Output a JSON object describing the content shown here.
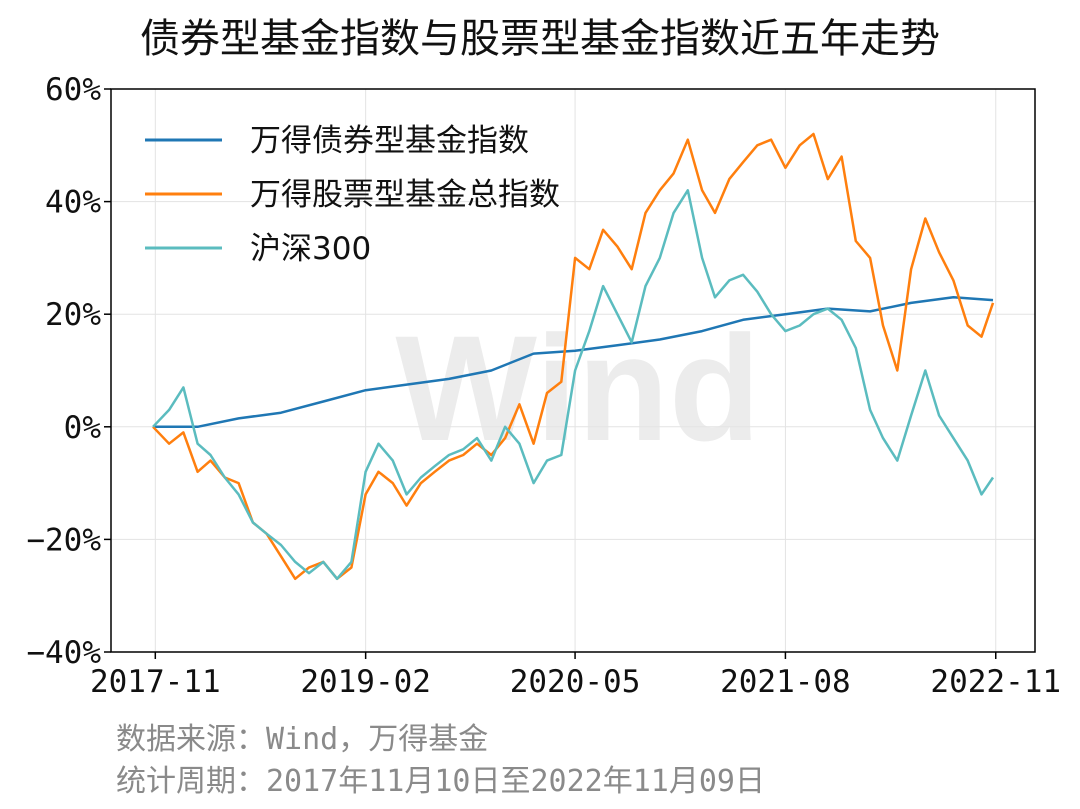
{
  "title": "债券型基金指数与股票型基金指数近五年走势",
  "source": "数据来源：Wind，万得基金",
  "period": "统计周期：2017年11月10日至2022年11月09日",
  "watermark": "Wind",
  "chart_data": {
    "type": "line",
    "title": "债券型基金指数与股票型基金指数近五年走势",
    "xlabel": "",
    "ylabel": "",
    "x_range": [
      "2017-11-10",
      "2022-11-09"
    ],
    "ylim": [
      -40,
      60
    ],
    "y_unit": "%",
    "y_ticks": [
      -40,
      -20,
      0,
      20,
      40,
      60
    ],
    "y_tick_labels": [
      "−40%",
      "−20%",
      "0%",
      "20%",
      "40%",
      "60%"
    ],
    "x_ticks": [
      "2017-11",
      "2019-02",
      "2020-05",
      "2021-08",
      "2022-11"
    ],
    "grid": true,
    "legend_position": "top-left",
    "series": [
      {
        "name": "万得债券型基金指数",
        "color": "#1f77b4",
        "x": [
          "2017-11-10",
          "2018-02",
          "2018-05",
          "2018-08",
          "2018-11",
          "2019-02",
          "2019-05",
          "2019-08",
          "2019-11",
          "2020-02",
          "2020-05",
          "2020-08",
          "2020-11",
          "2021-02",
          "2021-05",
          "2021-08",
          "2021-11",
          "2022-02",
          "2022-05",
          "2022-08",
          "2022-11-09"
        ],
        "values": [
          0,
          0,
          1.5,
          2.5,
          4.5,
          6.5,
          7.5,
          8.5,
          10,
          13,
          13.5,
          14.5,
          15.5,
          17,
          19,
          20,
          21,
          20.5,
          22,
          23,
          22.5
        ]
      },
      {
        "name": "万得股票型基金总指数",
        "color": "#ff7f0e",
        "x": [
          "2017-11-10",
          "2017-12",
          "2018-01",
          "2018-02",
          "2018-03",
          "2018-04",
          "2018-05",
          "2018-06",
          "2018-07",
          "2018-08",
          "2018-09",
          "2018-10",
          "2018-11",
          "2018-12",
          "2019-01",
          "2019-02",
          "2019-03",
          "2019-04",
          "2019-05",
          "2019-06",
          "2019-07",
          "2019-08",
          "2019-09",
          "2019-10",
          "2019-11",
          "2019-12",
          "2020-01",
          "2020-02",
          "2020-03",
          "2020-04",
          "2020-05",
          "2020-06",
          "2020-07",
          "2020-08",
          "2020-09",
          "2020-10",
          "2020-11",
          "2020-12",
          "2021-01",
          "2021-02",
          "2021-03",
          "2021-04",
          "2021-05",
          "2021-06",
          "2021-07",
          "2021-08",
          "2021-09",
          "2021-10",
          "2021-11",
          "2021-12",
          "2022-01",
          "2022-02",
          "2022-03",
          "2022-04",
          "2022-05",
          "2022-06",
          "2022-07",
          "2022-08",
          "2022-09",
          "2022-10",
          "2022-11-09"
        ],
        "values": [
          0,
          -3,
          -1,
          -8,
          -6,
          -9,
          -10,
          -17,
          -19,
          -23,
          -27,
          -25,
          -24,
          -27,
          -25,
          -12,
          -8,
          -10,
          -14,
          -10,
          -8,
          -6,
          -5,
          -3,
          -5,
          -2,
          4,
          -3,
          6,
          8,
          30,
          28,
          35,
          32,
          28,
          38,
          42,
          45,
          51,
          42,
          38,
          44,
          47,
          50,
          51,
          46,
          50,
          52,
          44,
          48,
          33,
          30,
          18,
          10,
          28,
          37,
          31,
          26,
          18,
          16,
          22
        ]
      },
      {
        "name": "沪深300",
        "color": "#5bbcbf",
        "x": [
          "2017-11-10",
          "2017-12",
          "2018-01",
          "2018-02",
          "2018-03",
          "2018-04",
          "2018-05",
          "2018-06",
          "2018-07",
          "2018-08",
          "2018-09",
          "2018-10",
          "2018-11",
          "2018-12",
          "2019-01",
          "2019-02",
          "2019-03",
          "2019-04",
          "2019-05",
          "2019-06",
          "2019-07",
          "2019-08",
          "2019-09",
          "2019-10",
          "2019-11",
          "2019-12",
          "2020-01",
          "2020-02",
          "2020-03",
          "2020-04",
          "2020-05",
          "2020-06",
          "2020-07",
          "2020-08",
          "2020-09",
          "2020-10",
          "2020-11",
          "2020-12",
          "2021-01",
          "2021-02",
          "2021-03",
          "2021-04",
          "2021-05",
          "2021-06",
          "2021-07",
          "2021-08",
          "2021-09",
          "2021-10",
          "2021-11",
          "2021-12",
          "2022-01",
          "2022-02",
          "2022-03",
          "2022-04",
          "2022-05",
          "2022-06",
          "2022-07",
          "2022-08",
          "2022-09",
          "2022-10",
          "2022-11-09"
        ],
        "values": [
          0,
          3,
          7,
          -3,
          -5,
          -9,
          -12,
          -17,
          -19,
          -21,
          -24,
          -26,
          -24,
          -27,
          -24,
          -8,
          -3,
          -6,
          -12,
          -9,
          -7,
          -5,
          -4,
          -2,
          -6,
          0,
          -3,
          -10,
          -6,
          -5,
          10,
          17,
          25,
          20,
          15,
          25,
          30,
          38,
          42,
          30,
          23,
          26,
          27,
          24,
          20,
          17,
          18,
          20,
          21,
          19,
          14,
          3,
          -2,
          -6,
          2,
          10,
          2,
          -2,
          -6,
          -12,
          -9
        ]
      }
    ]
  }
}
